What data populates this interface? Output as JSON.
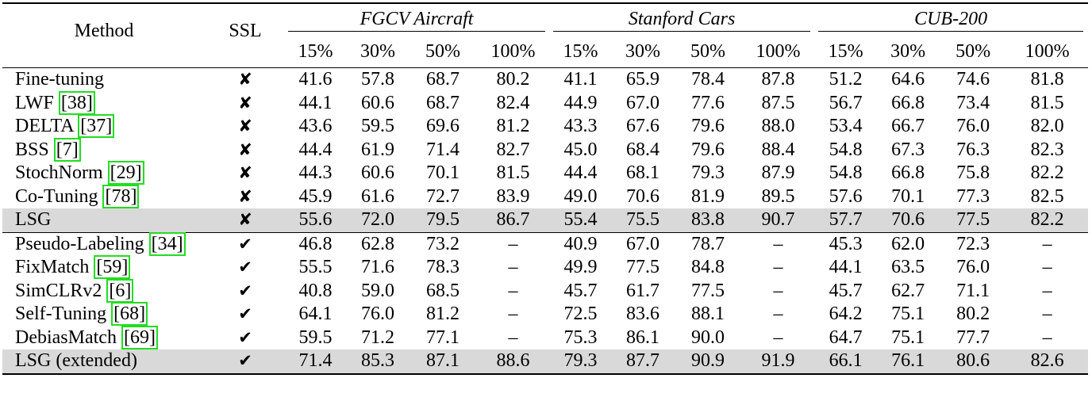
{
  "header": {
    "method": "Method",
    "ssl": "SSL",
    "datasets": [
      "FGCV Aircraft",
      "Stanford Cars",
      "CUB-200"
    ],
    "ratios": [
      "15%",
      "30%",
      "50%",
      "100%"
    ]
  },
  "marks": {
    "no": "✘",
    "yes": "✔"
  },
  "sections": [
    {
      "rows": [
        {
          "name": "Fine-tuning",
          "ref": "",
          "ssl": "no",
          "highlight": false,
          "values": [
            "41.6",
            "57.8",
            "68.7",
            "80.2",
            "41.1",
            "65.9",
            "78.4",
            "87.8",
            "51.2",
            "64.6",
            "74.6",
            "81.8"
          ],
          "bold_cols": []
        },
        {
          "name": "LWF ",
          "ref": "[38]",
          "ssl": "no",
          "highlight": false,
          "values": [
            "44.1",
            "60.6",
            "68.7",
            "82.4",
            "44.9",
            "67.0",
            "77.6",
            "87.5",
            "56.7",
            "66.8",
            "73.4",
            "81.5"
          ],
          "bold_cols": []
        },
        {
          "name": "DELTA ",
          "ref": "[37]",
          "ssl": "no",
          "highlight": false,
          "values": [
            "43.6",
            "59.5",
            "69.6",
            "81.2",
            "43.3",
            "67.6",
            "79.6",
            "88.0",
            "53.4",
            "66.7",
            "76.0",
            "82.0"
          ],
          "bold_cols": []
        },
        {
          "name": "BSS ",
          "ref": "[7]",
          "ssl": "no",
          "highlight": false,
          "values": [
            "44.4",
            "61.9",
            "71.4",
            "82.7",
            "45.0",
            "68.4",
            "79.6",
            "88.4",
            "54.8",
            "67.3",
            "76.3",
            "82.3"
          ],
          "bold_cols": []
        },
        {
          "name": "StochNorm ",
          "ref": "[29]",
          "ssl": "no",
          "highlight": false,
          "values": [
            "44.3",
            "60.6",
            "70.1",
            "81.5",
            "44.4",
            "68.1",
            "79.3",
            "87.9",
            "54.8",
            "66.8",
            "75.8",
            "82.2"
          ],
          "bold_cols": []
        },
        {
          "name": "Co-Tuning ",
          "ref": "[78]",
          "ssl": "no",
          "highlight": false,
          "values": [
            "45.9",
            "61.6",
            "72.7",
            "83.9",
            "49.0",
            "70.6",
            "81.9",
            "89.5",
            "57.6",
            "70.1",
            "77.3",
            "82.5"
          ],
          "bold_cols": [
            11
          ]
        },
        {
          "name": "LSG",
          "ref": "",
          "ssl": "no",
          "highlight": true,
          "values": [
            "55.6",
            "72.0",
            "79.5",
            "86.7",
            "55.4",
            "75.5",
            "83.8",
            "90.7",
            "57.7",
            "70.6",
            "77.5",
            "82.2"
          ],
          "bold_cols": [],
          "normal_cols": [
            11
          ]
        }
      ]
    },
    {
      "rows": [
        {
          "name": "Pseudo-Labeling ",
          "ref": "[34]",
          "ssl": "yes",
          "highlight": false,
          "values": [
            "46.8",
            "62.8",
            "73.2",
            "–",
            "40.9",
            "67.0",
            "78.7",
            "–",
            "45.3",
            "62.0",
            "72.3",
            "–"
          ],
          "bold_cols": []
        },
        {
          "name": "FixMatch ",
          "ref": "[59]",
          "ssl": "yes",
          "highlight": false,
          "values": [
            "55.5",
            "71.6",
            "78.3",
            "–",
            "49.9",
            "77.5",
            "84.8",
            "–",
            "44.1",
            "63.5",
            "76.0",
            "–"
          ],
          "bold_cols": []
        },
        {
          "name": "SimCLRv2 ",
          "ref": "[6]",
          "ssl": "yes",
          "highlight": false,
          "values": [
            "40.8",
            "59.0",
            "68.5",
            "–",
            "45.7",
            "61.7",
            "77.5",
            "–",
            "45.7",
            "62.7",
            "71.1",
            "–"
          ],
          "bold_cols": []
        },
        {
          "name": "Self-Tuning ",
          "ref": "[68]",
          "ssl": "yes",
          "highlight": false,
          "values": [
            "64.1",
            "76.0",
            "81.2",
            "–",
            "72.5",
            "83.6",
            "88.1",
            "–",
            "64.2",
            "75.1",
            "80.2",
            "–"
          ],
          "bold_cols": []
        },
        {
          "name": "DebiasMatch ",
          "ref": "[69]",
          "ssl": "yes",
          "highlight": false,
          "values": [
            "59.5",
            "71.2",
            "77.1",
            "–",
            "75.3",
            "86.1",
            "90.0",
            "–",
            "64.7",
            "75.1",
            "77.7",
            "–"
          ],
          "bold_cols": []
        },
        {
          "name": "LSG (extended)",
          "ref": "",
          "ssl": "yes",
          "highlight": true,
          "values": [
            "71.4",
            "85.3",
            "87.1",
            "88.6",
            "79.3",
            "87.7",
            "90.9",
            "91.9",
            "66.1",
            "76.1",
            "80.6",
            "82.6"
          ],
          "bold_cols": []
        }
      ]
    }
  ]
}
